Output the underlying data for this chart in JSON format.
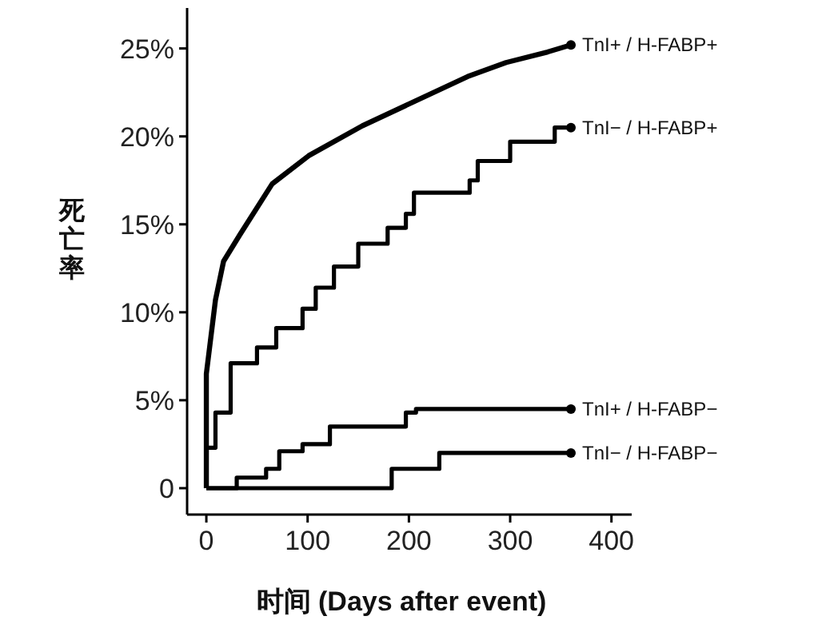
{
  "chart_data": {
    "type": "line",
    "xlabel": "时间 (Days after event)",
    "ylabel": "死亡率",
    "xlim": [
      -19,
      420
    ],
    "ylim": [
      -1.5,
      27.3
    ],
    "xticks": [
      0,
      100,
      200,
      300,
      400
    ],
    "yticks": [
      {
        "value": 0,
        "label": "0"
      },
      {
        "value": 5,
        "label": "5%"
      },
      {
        "value": 10,
        "label": "10%"
      },
      {
        "value": 15,
        "label": "15%"
      },
      {
        "value": 20,
        "label": "20%"
      },
      {
        "value": 25,
        "label": "25%"
      }
    ],
    "grid": false,
    "line_style": "solid",
    "series": [
      {
        "color": "#000000",
        "x": [
          0,
          0,
          9,
          17,
          33,
          65,
          101,
          154,
          206,
          258,
          296,
          337,
          360
        ],
        "values": [
          0,
          6.5,
          10.7,
          12.9,
          14.4,
          17.3,
          18.9,
          20.6,
          22,
          23.4,
          24.2,
          24.8,
          25.2
        ]
      },
      {
        "type": "step",
        "color": "#000000",
        "x": [
          0,
          0,
          9,
          24,
          50,
          69,
          95,
          108,
          126,
          150,
          179,
          197,
          205,
          260,
          268,
          300,
          344,
          360
        ],
        "values": [
          0,
          2.3,
          4.3,
          7.1,
          8,
          9.1,
          10.2,
          11.4,
          12.6,
          13.9,
          14.8,
          15.6,
          16.8,
          17.5,
          18.6,
          19.7,
          20.5,
          20.5
        ]
      },
      {
        "type": "step",
        "color": "#000000",
        "x": [
          0,
          30,
          59,
          72,
          95,
          122,
          197,
          207,
          360
        ],
        "values": [
          0,
          0.6,
          1.1,
          2.1,
          2.5,
          3.5,
          4.3,
          4.5,
          4.5
        ]
      },
      {
        "type": "step",
        "color": "#000000",
        "x": [
          0,
          183,
          230,
          360
        ],
        "values": [
          0,
          1.1,
          2,
          2
        ]
      }
    ],
    "annotations": [
      "TnI+ / H-FABP+",
      "TnI− / H-FABP+",
      "TnI+ / H-FABP−",
      "TnI− / H-FABP−"
    ]
  }
}
